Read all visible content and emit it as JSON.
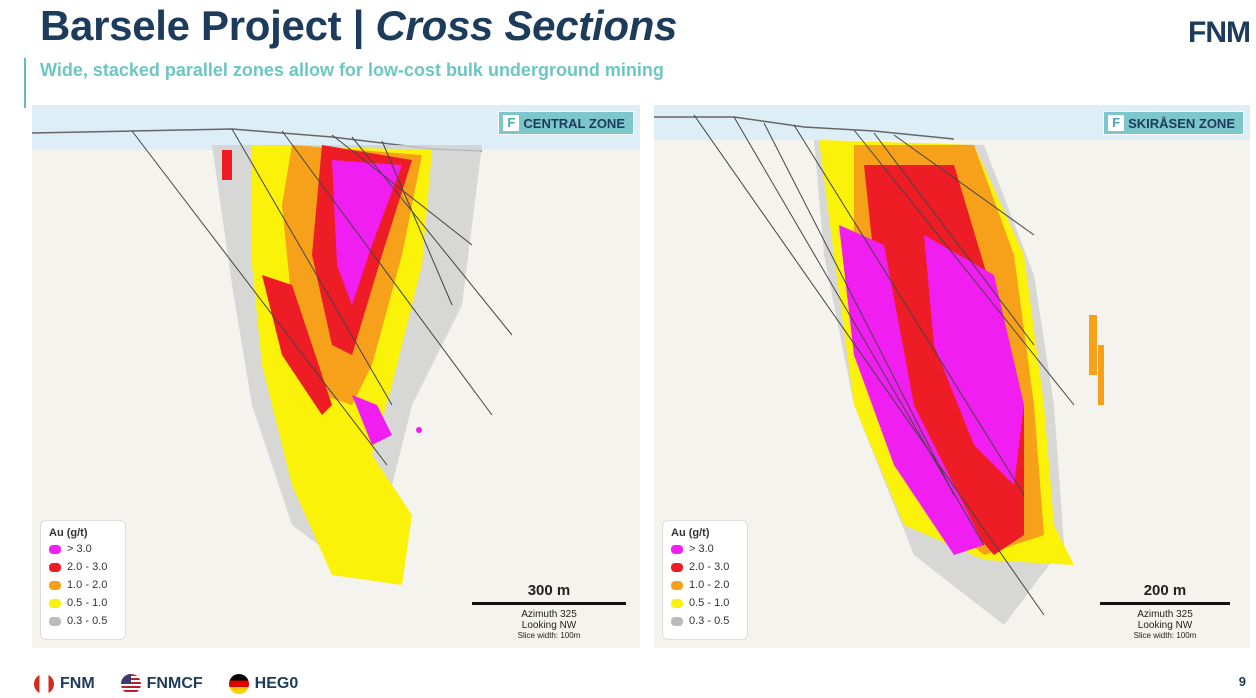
{
  "header": {
    "title_main": "Barsele Project | ",
    "title_italic": "Cross Sections",
    "subtitle": "Wide, stacked parallel zones allow for low-cost bulk underground mining",
    "logo": "FNM"
  },
  "panels": [
    {
      "zone_label": "CENTRAL ZONE",
      "scale_label": "300 m",
      "azimuth": "Azimuth 325",
      "looking": "Looking NW",
      "slice": "Slice width: 100m"
    },
    {
      "zone_label": "SKIRÅSEN ZONE",
      "scale_label": "200 m",
      "azimuth": "Azimuth 325",
      "looking": "Looking NW",
      "slice": "Slice width: 100m"
    }
  ],
  "legend": {
    "title": "Au (g/t)",
    "items": [
      {
        "label": "> 3.0",
        "color": "#f01ef0"
      },
      {
        "label": "2.0 - 3.0",
        "color": "#ee1c24"
      },
      {
        "label": "1.0 - 2.0",
        "color": "#f7a11a"
      },
      {
        "label": "0.5 - 1.0",
        "color": "#fbf20a"
      },
      {
        "label": "0.3 - 0.5",
        "color": "#bbbbbb"
      }
    ]
  },
  "footer": {
    "tickers": [
      "FNM",
      "FNMCF",
      "HEG0"
    ],
    "page_number": "9"
  },
  "colors": {
    "navy": "#1d3b5a",
    "teal": "#6cc6c4",
    "magenta": "#f01ef0",
    "red": "#ee1c24",
    "orange": "#f7a11a",
    "yellow": "#fbf20a",
    "grey": "#bbbbbb"
  }
}
